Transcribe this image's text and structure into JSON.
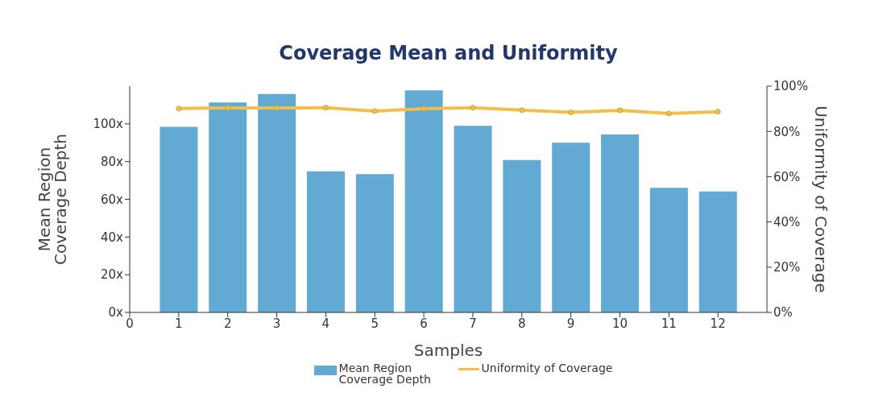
{
  "chart_data": {
    "type": "bar",
    "title": "Coverage Mean and Uniformity",
    "xlabel": "Samples",
    "ylabel": "Mean Region Coverage Depth",
    "y2label": "Uniformity of Coverage",
    "x": [
      1,
      2,
      3,
      4,
      5,
      6,
      7,
      8,
      9,
      10,
      11,
      12
    ],
    "series": [
      {
        "name": "Mean Region Coverage Depth",
        "color": "#62aad3",
        "values": [
          98.4,
          111.4,
          115.8,
          74.8,
          73.3,
          117.8,
          99.0,
          80.8,
          90.0,
          94.4,
          66.1,
          64.2
        ]
      },
      {
        "name": "Uniformity of Coverage",
        "type": "line",
        "axis": "y2",
        "color": "#f0c04a",
        "values": [
          90.1,
          90.4,
          90.4,
          90.5,
          89.0,
          90.0,
          90.5,
          89.4,
          88.4,
          89.3,
          87.9,
          88.7
        ]
      }
    ],
    "xlim": [
      0,
      13
    ],
    "xticks": [
      0,
      1,
      2,
      3,
      4,
      5,
      6,
      7,
      8,
      9,
      10,
      11,
      12
    ],
    "ylim": [
      0,
      120
    ],
    "yticks": [
      {
        "value": 0,
        "label": "0x"
      },
      {
        "value": 20,
        "label": "20x"
      },
      {
        "value": 40,
        "label": "40x"
      },
      {
        "value": 60,
        "label": "60x"
      },
      {
        "value": 80,
        "label": "80x"
      },
      {
        "value": 100,
        "label": "100x"
      }
    ],
    "y2lim": [
      0,
      100
    ],
    "y2ticks": [
      {
        "value": 0,
        "label": "0%"
      },
      {
        "value": 20,
        "label": "20%"
      },
      {
        "value": 40,
        "label": "40%"
      },
      {
        "value": 60,
        "label": "60%"
      },
      {
        "value": 80,
        "label": "80%"
      },
      {
        "value": 100,
        "label": "100%"
      }
    ],
    "grid": false,
    "legend": "bottom",
    "marker": "circle",
    "line_style": "solid"
  }
}
